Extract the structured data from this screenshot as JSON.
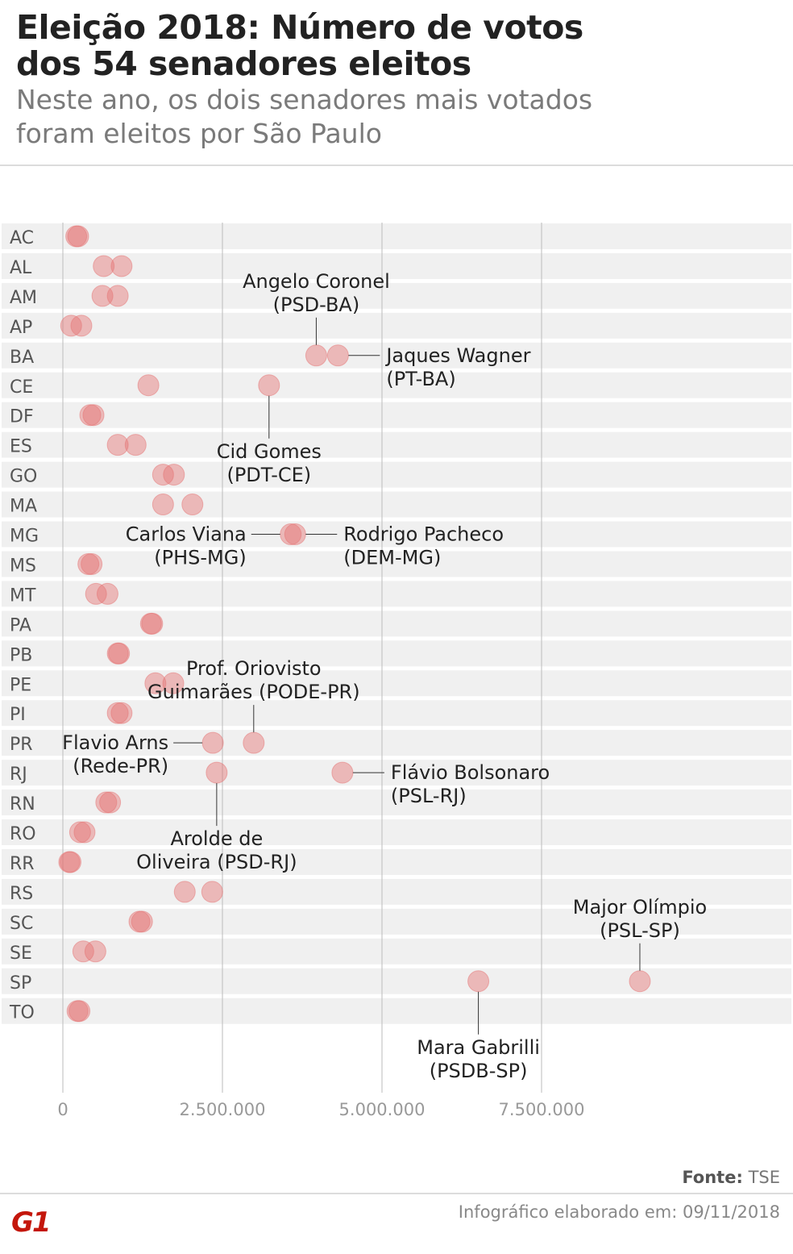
{
  "title_lines": [
    "Eleição 2018: Número de votos",
    "dos 54 senadores eleitos"
  ],
  "subtitle_lines": [
    "Neste ano, os dois senadores mais votados",
    "foram eleitos por São Paulo"
  ],
  "source_label": "Fonte:",
  "source_value": "TSE",
  "credit": "Infográfico elaborado em: 09/11/2018",
  "logo_text": "G1",
  "colors": {
    "dot": "#e57373",
    "row_band": "#f0f0f0",
    "grid": "#bbbbbb",
    "label": "#222222"
  },
  "chart_data": {
    "type": "scatter",
    "title": "Eleição 2018: Número de votos dos 54 senadores eleitos",
    "xlabel": "",
    "ylabel": "",
    "xlim": [
      0,
      10000000
    ],
    "x_ticks": [
      0,
      2500000,
      5000000,
      7500000
    ],
    "x_tick_labels": [
      "0",
      "2.500.000",
      "5.000.000",
      "7.500.000"
    ],
    "grid": true,
    "categories": [
      "AC",
      "AL",
      "AM",
      "AP",
      "BA",
      "CE",
      "DF",
      "ES",
      "GO",
      "MA",
      "MG",
      "MS",
      "MT",
      "PA",
      "PB",
      "PE",
      "PI",
      "PR",
      "RJ",
      "RN",
      "RO",
      "RR",
      "RS",
      "SC",
      "SE",
      "SP",
      "TO"
    ],
    "points": [
      {
        "state": "AC",
        "votes": [
          210000,
          240000
        ]
      },
      {
        "state": "AL",
        "votes": [
          640000,
          920000
        ]
      },
      {
        "state": "AM",
        "votes": [
          620000,
          860000
        ]
      },
      {
        "state": "AP",
        "votes": [
          130000,
          290000
        ]
      },
      {
        "state": "BA",
        "votes": [
          3970000,
          4310000
        ]
      },
      {
        "state": "CE",
        "votes": [
          1340000,
          3230000
        ]
      },
      {
        "state": "DF",
        "votes": [
          430000,
          480000
        ]
      },
      {
        "state": "ES",
        "votes": [
          860000,
          1140000
        ]
      },
      {
        "state": "GO",
        "votes": [
          1570000,
          1740000
        ]
      },
      {
        "state": "MA",
        "votes": [
          1570000,
          2030000
        ]
      },
      {
        "state": "MG",
        "votes": [
          3570000,
          3640000
        ]
      },
      {
        "state": "MS",
        "votes": [
          400000,
          450000
        ]
      },
      {
        "state": "MT",
        "votes": [
          520000,
          700000
        ]
      },
      {
        "state": "PA",
        "votes": [
          1380000,
          1400000
        ]
      },
      {
        "state": "PB",
        "votes": [
          860000,
          880000
        ]
      },
      {
        "state": "PE",
        "votes": [
          1450000,
          1730000
        ]
      },
      {
        "state": "PI",
        "votes": [
          860000,
          920000
        ]
      },
      {
        "state": "PR",
        "votes": [
          2350000,
          2990000
        ]
      },
      {
        "state": "RJ",
        "votes": [
          2410000,
          4380000
        ]
      },
      {
        "state": "RN",
        "votes": [
          680000,
          740000
        ]
      },
      {
        "state": "RO",
        "votes": [
          270000,
          340000
        ]
      },
      {
        "state": "RR",
        "votes": [
          100000,
          120000
        ]
      },
      {
        "state": "RS",
        "votes": [
          1910000,
          2340000
        ]
      },
      {
        "state": "SC",
        "votes": [
          1200000,
          1240000
        ]
      },
      {
        "state": "SE",
        "votes": [
          320000,
          510000
        ]
      },
      {
        "state": "SP",
        "votes": [
          6510000,
          9040000
        ]
      },
      {
        "state": "TO",
        "votes": [
          230000,
          260000
        ]
      }
    ],
    "annotations": [
      {
        "state": "BA",
        "value": 3970000,
        "lines": [
          "Angelo Coronel",
          "(PSD-BA)"
        ]
      },
      {
        "state": "BA",
        "value": 4310000,
        "lines": [
          "Jaques Wagner",
          "(PT-BA)"
        ]
      },
      {
        "state": "CE",
        "value": 3230000,
        "lines": [
          "Cid Gomes",
          "(PDT-CE)"
        ]
      },
      {
        "state": "MG",
        "value": 3570000,
        "lines": [
          "Carlos Viana",
          "(PHS-MG)"
        ]
      },
      {
        "state": "MG",
        "value": 3640000,
        "lines": [
          "Rodrigo Pacheco",
          "(DEM-MG)"
        ]
      },
      {
        "state": "PR",
        "value": 2990000,
        "lines": [
          "Prof. Oriovisto",
          "Guimarães (PODE-PR)"
        ]
      },
      {
        "state": "PR",
        "value": 2350000,
        "lines": [
          "Flavio Arns",
          "(Rede-PR)"
        ]
      },
      {
        "state": "RJ",
        "value": 4380000,
        "lines": [
          "Flávio Bolsonaro",
          "(PSL-RJ)"
        ]
      },
      {
        "state": "RJ",
        "value": 2410000,
        "lines": [
          "Arolde de",
          "Oliveira (PSD-RJ)"
        ]
      },
      {
        "state": "SP",
        "value": 9040000,
        "lines": [
          "Major Olímpio",
          "(PSL-SP)"
        ]
      },
      {
        "state": "SP",
        "value": 6510000,
        "lines": [
          "Mara Gabrilli",
          "(PSDB-SP)"
        ]
      }
    ]
  }
}
